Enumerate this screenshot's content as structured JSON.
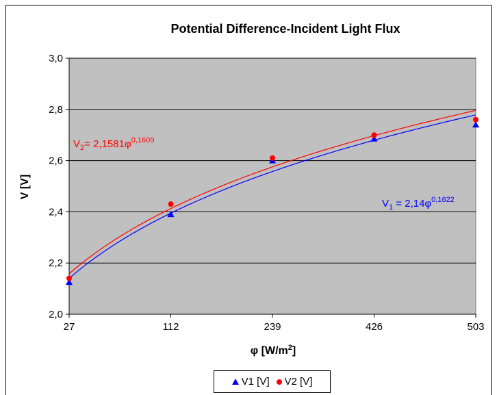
{
  "chart_data": {
    "type": "scatter",
    "title": "Potential Difference-Incident Light Flux",
    "xlabel": "φ [W/m²]",
    "ylabel": "V [V]",
    "categories": [
      "27",
      "112",
      "239",
      "426",
      "503"
    ],
    "x": [
      27,
      112,
      239,
      426,
      503
    ],
    "ylim": [
      2.0,
      3.0
    ],
    "yticks": [
      "2,0",
      "2,2",
      "2,4",
      "2,6",
      "2,8",
      "3,0"
    ],
    "grid": true,
    "legend_position": "bottom",
    "series": [
      {
        "name": "V1 [V]",
        "color": "#0000ff",
        "marker": "triangle",
        "values": [
          2.125,
          2.39,
          2.6,
          2.685,
          2.74
        ],
        "fit": {
          "label": "V1 = 2,14φ^0,1622",
          "a": 2.14,
          "b": 0.1622
        }
      },
      {
        "name": "V2 [V]",
        "color": "#ff0000",
        "marker": "circle",
        "values": [
          2.14,
          2.43,
          2.61,
          2.7,
          2.76
        ],
        "fit": {
          "label": "V2= 2,1581φ^0,1609",
          "a": 2.1581,
          "b": 0.1609
        }
      }
    ]
  },
  "equations": {
    "v2_base": "V",
    "v2_sub": "2",
    "v2_mid": "= 2,1581φ",
    "v2_exp": "0,1609",
    "v1_base": "V",
    "v1_sub": "1",
    "v1_mid": " = 2,14φ",
    "v1_exp": "0,1622"
  },
  "axis_labels": {
    "x_main": "φ [W/m",
    "x_sup": "2",
    "x_end": "]",
    "y": "V [V]"
  },
  "legend": {
    "v1": "V1 [V]",
    "v2": "V2 [V]"
  },
  "colors": {
    "plot_bg": "#c0c0c0",
    "v1": "#0000ff",
    "v2": "#ff0000"
  }
}
